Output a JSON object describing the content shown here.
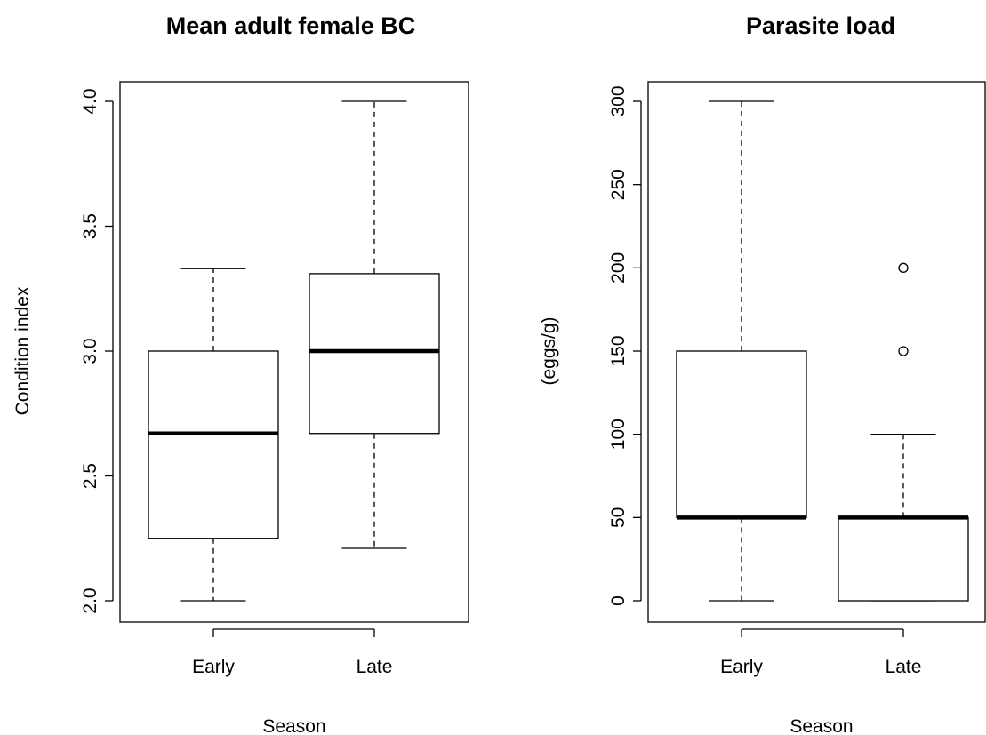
{
  "chart_data": [
    {
      "type": "boxplot",
      "title": "Mean adult female BC",
      "xlabel": "Season",
      "ylabel": "Condition index",
      "ylim": [
        2.0,
        4.0
      ],
      "yticks": [
        "2.0",
        "2.5",
        "3.0",
        "3.5",
        "4.0"
      ],
      "categories": [
        "Early",
        "Late"
      ],
      "boxes": [
        {
          "category": "Early",
          "min": 2.0,
          "q1": 2.25,
          "median": 2.67,
          "q3": 3.0,
          "max": 3.33,
          "outliers": []
        },
        {
          "category": "Late",
          "min": 2.21,
          "q1": 2.67,
          "median": 3.0,
          "q3": 3.31,
          "max": 4.0,
          "outliers": []
        }
      ]
    },
    {
      "type": "boxplot",
      "title": "Parasite load",
      "xlabel": "Season",
      "ylabel": "(eggs/g)",
      "ylim": [
        0,
        300
      ],
      "yticks": [
        "0",
        "50",
        "100",
        "150",
        "200",
        "250",
        "300"
      ],
      "categories": [
        "Early",
        "Late"
      ],
      "boxes": [
        {
          "category": "Early",
          "min": 0,
          "q1": 50,
          "median": 50,
          "q3": 150,
          "max": 300,
          "outliers": []
        },
        {
          "category": "Late",
          "min": 0,
          "q1": 0,
          "median": 50,
          "q3": 50,
          "max": 100,
          "outliers": [
            150,
            200
          ]
        }
      ]
    }
  ]
}
